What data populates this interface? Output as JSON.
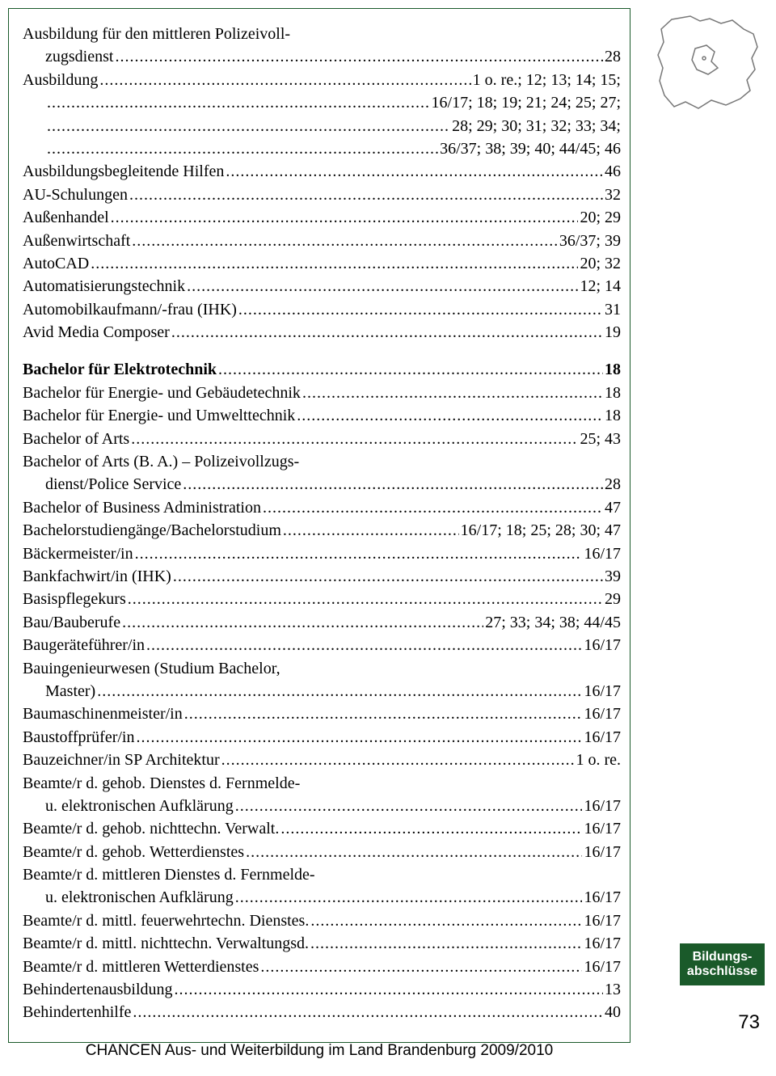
{
  "entries": [
    {
      "lines": [
        {
          "t": "Ausbildung für den mittleren Polizeivoll-",
          "noDots": true
        }
      ],
      "continuation": {
        "t": "zugsdienst",
        "p": "28",
        "indent": true
      }
    },
    {
      "lines": [
        {
          "t": "Ausbildung",
          "p": "1 o. re.; 12; 13; 14; 15;"
        }
      ]
    },
    {
      "lines": [
        {
          "t": "",
          "p": "16/17; 18; 19; 21; 24; 25; 27;",
          "indent": true
        }
      ]
    },
    {
      "lines": [
        {
          "t": "",
          "p": "28; 29; 30; 31; 32; 33; 34;",
          "indent": true
        }
      ]
    },
    {
      "lines": [
        {
          "t": "",
          "p": "36/37; 38; 39; 40; 44/45; 46",
          "indent": true
        }
      ]
    },
    {
      "lines": [
        {
          "t": "Ausbildungsbegleitende Hilfen",
          "p": "46"
        }
      ]
    },
    {
      "lines": [
        {
          "t": "AU-Schulungen",
          "p": "32"
        }
      ]
    },
    {
      "lines": [
        {
          "t": "Außenhandel",
          "p": "20; 29"
        }
      ]
    },
    {
      "lines": [
        {
          "t": "Außenwirtschaft",
          "p": "36/37; 39"
        }
      ]
    },
    {
      "lines": [
        {
          "t": "AutoCAD",
          "p": "20; 32"
        }
      ]
    },
    {
      "lines": [
        {
          "t": "Automatisierungstechnik",
          "p": "12; 14"
        }
      ]
    },
    {
      "lines": [
        {
          "t": "Automobilkaufmann/-frau (IHK)",
          "p": "31"
        }
      ]
    },
    {
      "lines": [
        {
          "t": "Avid Media Composer",
          "p": "19"
        }
      ]
    },
    {
      "gap": true
    },
    {
      "lines": [
        {
          "t": "Bachelor für Elektrotechnik",
          "p": "18",
          "bold": true
        }
      ]
    },
    {
      "lines": [
        {
          "t": "Bachelor für Energie- und Gebäudetechnik",
          "p": "18"
        }
      ]
    },
    {
      "lines": [
        {
          "t": "Bachelor für Energie- und Umwelttechnik",
          "p": "18"
        }
      ]
    },
    {
      "lines": [
        {
          "t": "Bachelor of Arts",
          "p": "25; 43"
        }
      ]
    },
    {
      "lines": [
        {
          "t": "Bachelor of Arts (B. A.) – Polizeivollzugs-",
          "noDots": true
        }
      ],
      "continuation": {
        "t": "dienst/Police Service",
        "p": "28",
        "indent": true
      }
    },
    {
      "lines": [
        {
          "t": "Bachelor of Business Administration",
          "p": "47"
        }
      ]
    },
    {
      "lines": [
        {
          "t": "Bachelorstudiengänge/Bachelorstudium",
          "p": "16/17; 18; 25; 28; 30; 47"
        }
      ]
    },
    {
      "lines": [
        {
          "t": "Bäckermeister/in",
          "p": "16/17"
        }
      ]
    },
    {
      "lines": [
        {
          "t": "Bankfachwirt/in (IHK)",
          "p": "39"
        }
      ]
    },
    {
      "lines": [
        {
          "t": "Basispflegekurs",
          "p": "29"
        }
      ]
    },
    {
      "lines": [
        {
          "t": "Bau/Bauberufe",
          "p": "27; 33; 34; 38; 44/45"
        }
      ]
    },
    {
      "lines": [
        {
          "t": "Baugeräteführer/in",
          "p": "16/17"
        }
      ]
    },
    {
      "lines": [
        {
          "t": "Bauingenieurwesen (Studium Bachelor,",
          "noDots": true
        }
      ],
      "continuation": {
        "t": "Master)",
        "p": "16/17",
        "indent": true
      }
    },
    {
      "lines": [
        {
          "t": "Baumaschinenmeister/in",
          "p": "16/17"
        }
      ]
    },
    {
      "lines": [
        {
          "t": "Baustoffprüfer/in",
          "p": "16/17"
        }
      ]
    },
    {
      "lines": [
        {
          "t": "Bauzeichner/in SP Architektur",
          "p": "1 o. re."
        }
      ]
    },
    {
      "lines": [
        {
          "t": "Beamte/r d. gehob. Dienstes d. Fernmelde-",
          "noDots": true
        }
      ],
      "continuation": {
        "t": "u. elektronischen Aufklärung",
        "p": "16/17",
        "indent": true
      }
    },
    {
      "lines": [
        {
          "t": "Beamte/r d. gehob. nichttechn. Verwalt.",
          "p": "16/17"
        }
      ]
    },
    {
      "lines": [
        {
          "t": "Beamte/r d. gehob. Wetterdienstes",
          "p": "16/17"
        }
      ]
    },
    {
      "lines": [
        {
          "t": "Beamte/r d. mittleren Dienstes d. Fernmelde-",
          "noDots": true
        }
      ],
      "continuation": {
        "t": "u. elektronischen Aufklärung",
        "p": "16/17",
        "indent": true
      }
    },
    {
      "lines": [
        {
          "t": "Beamte/r d. mittl. feuerwehrtechn. Dienstes.",
          "p": "16/17"
        }
      ]
    },
    {
      "lines": [
        {
          "t": "Beamte/r d. mittl. nichttechn. Verwaltungsd.",
          "p": "16/17"
        }
      ]
    },
    {
      "lines": [
        {
          "t": "Beamte/r d. mittleren Wetterdienstes",
          "p": "16/17"
        }
      ]
    },
    {
      "lines": [
        {
          "t": "Behindertenausbildung",
          "p": "13"
        }
      ]
    },
    {
      "lines": [
        {
          "t": "Behindertenhilfe",
          "p": "40"
        }
      ]
    }
  ],
  "sideTab": {
    "line1": "Bildungs-",
    "line2": "abschlüsse",
    "bg": "#1a5a2a",
    "color": "#ffffff"
  },
  "pageNumber": "73",
  "footer": "CHANCEN Aus- und Weiterbildung im Land Brandenburg 2009/2010",
  "mapStroke": "#777777",
  "borderColor": "#1a5a2a"
}
